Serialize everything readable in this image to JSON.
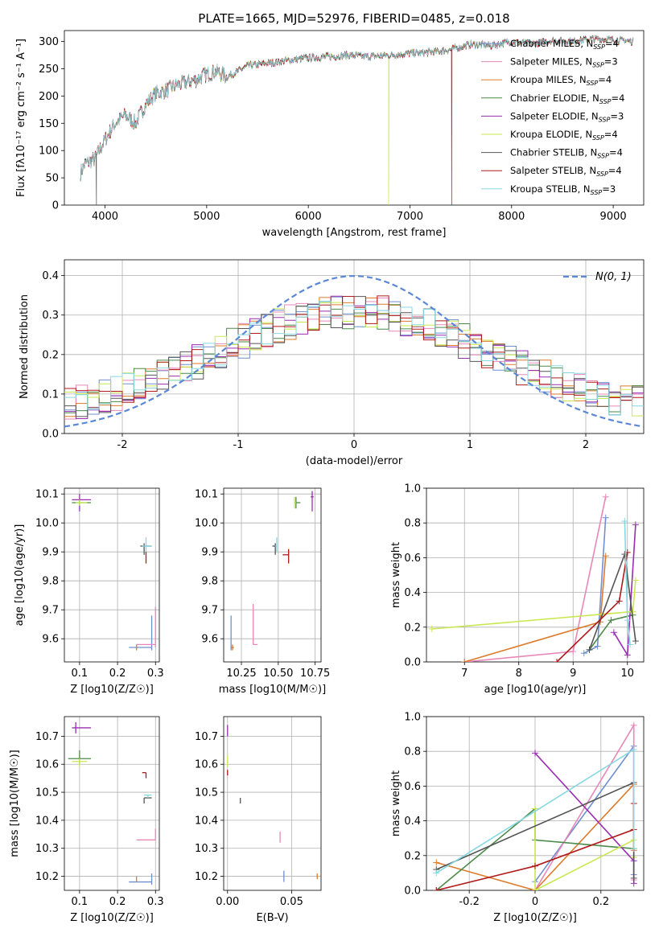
{
  "figure_title": "PLATE=1665, MJD=52976, FIBERID=0485, z=0.018",
  "colors": {
    "Chabrier MILES": "#6f8fcf",
    "Salpeter MILES": "#e887b8",
    "Kroupa MILES": "#dd7a2b",
    "Chabrier ELODIE": "#4a8a4a",
    "Salpeter ELODIE": "#9b2db3",
    "Kroupa ELODIE": "#c9e84f",
    "Chabrier STELIB": "#555555",
    "Salpeter STELIB": "#b01a1a",
    "Kroupa STELIB": "#86d8e0"
  },
  "chart_data": [
    {
      "id": "spectrum",
      "type": "line",
      "xlabel": "wavelength [Angstrom, rest frame]",
      "ylabel": "Flux [fλ10⁻¹⁷ erg cm⁻² s⁻¹ A⁻¹]",
      "xlim": [
        3600,
        9300
      ],
      "ylim": [
        0,
        320
      ],
      "xticks": [
        4000,
        5000,
        6000,
        7000,
        8000,
        9000
      ],
      "yticks": [
        0,
        50,
        100,
        150,
        200,
        250,
        300
      ],
      "grid": false,
      "legend_position": "top-right",
      "legend": [
        "Chabrier MILES, N_SSP=4",
        "Salpeter MILES, N_SSP=3",
        "Kroupa MILES, N_SSP=4",
        "Chabrier ELODIE, N_SSP=4",
        "Salpeter ELODIE, N_SSP=3",
        "Kroupa ELODIE, N_SSP=4",
        "Chabrier STELIB, N_SSP=4",
        "Salpeter STELIB, N_SSP=4",
        "Kroupa STELIB, N_SSP=3"
      ],
      "continuum": {
        "x": [
          3750,
          3800,
          3900,
          4000,
          4100,
          4200,
          4300,
          4400,
          4500,
          4600,
          4700,
          4800,
          4900,
          5000,
          5100,
          5200,
          5400,
          5600,
          5800,
          6000,
          6200,
          6400,
          6600,
          6800,
          7000,
          7200,
          7400,
          7600,
          7800,
          8000,
          8200,
          8400,
          8600,
          8800,
          9000,
          9200
        ],
        "y": [
          55,
          75,
          85,
          120,
          150,
          165,
          150,
          185,
          205,
          210,
          220,
          225,
          230,
          240,
          245,
          235,
          255,
          260,
          265,
          270,
          272,
          275,
          272,
          275,
          278,
          280,
          285,
          295,
          292,
          300,
          295,
          302,
          300,
          305,
          303,
          300
        ]
      },
      "dropouts": [
        {
          "series": "Chabrier STELIB",
          "x": 3915
        },
        {
          "series": "Kroupa ELODIE",
          "x": 6790
        },
        {
          "series": "Salpeter STELIB",
          "x": 7410
        }
      ]
    },
    {
      "id": "residuals",
      "type": "histogram",
      "xlabel": "(data-model)/error",
      "ylabel": "Normed distribution",
      "xlim": [
        -2.5,
        2.5
      ],
      "ylim": [
        0,
        0.44
      ],
      "xticks": [
        -2,
        -1,
        0,
        1,
        2
      ],
      "yticks": [
        0.0,
        0.1,
        0.2,
        0.3,
        0.4
      ],
      "grid": true,
      "bins": 50,
      "legend_position": "top-right",
      "gaussian_label": "N(0, 1)",
      "gaussian_color": "#5b87d6"
    },
    {
      "id": "Z-age",
      "type": "errorbar",
      "xlabel": "Z [log10(Z/Z☉)]",
      "ylabel": "age  [log10(age/yr)]",
      "xlim": [
        0.06,
        0.31
      ],
      "ylim": [
        9.52,
        10.12
      ],
      "xticks": [
        0.1,
        0.2,
        0.3
      ],
      "yticks": [
        9.6,
        9.7,
        9.8,
        9.9,
        10.0,
        10.1
      ],
      "grid": true,
      "points": [
        {
          "series": "Salpeter ELODIE",
          "x": 0.1,
          "y": 10.08,
          "xerr": [
            0.02,
            0.03
          ],
          "yerr": [
            0.04,
            0.02
          ]
        },
        {
          "series": "Chabrier ELODIE",
          "x": 0.1,
          "y": 10.07,
          "xerr": [
            0.02,
            0.03
          ],
          "yerr": [
            0.01,
            0.01
          ]
        },
        {
          "series": "Kroupa ELODIE",
          "x": 0.1,
          "y": 10.07,
          "xerr": [
            0.01,
            0.02
          ],
          "yerr": [
            0.01,
            0.01
          ]
        },
        {
          "series": "Chabrier STELIB",
          "x": 0.27,
          "y": 9.92,
          "xerr": [
            0.01,
            0.02
          ],
          "yerr": [
            0.03,
            0.01
          ]
        },
        {
          "series": "Kroupa STELIB",
          "x": 0.275,
          "y": 9.92,
          "xerr": [
            0.01,
            0.015
          ],
          "yerr": [
            0.02,
            0.03
          ]
        },
        {
          "series": "Salpeter STELIB",
          "x": 0.275,
          "y": 9.88,
          "xerr": [
            0.0,
            0.0
          ],
          "yerr": [
            0.02,
            0.02
          ]
        },
        {
          "series": "Chabrier MILES",
          "x": 0.29,
          "y": 9.57,
          "xerr": [
            0.06,
            0.0
          ],
          "yerr": [
            0.01,
            0.11
          ]
        },
        {
          "series": "Salpeter MILES",
          "x": 0.3,
          "y": 9.58,
          "xerr": [
            0.05,
            0.0
          ],
          "yerr": [
            0.01,
            0.13
          ]
        },
        {
          "series": "Kroupa MILES",
          "x": 0.25,
          "y": 9.57,
          "xerr": [
            0.0,
            0.0
          ],
          "yerr": [
            0.01,
            0.01
          ]
        }
      ]
    },
    {
      "id": "mass-age",
      "type": "errorbar",
      "xlabel": "mass [log10(M/M☉)]",
      "ylabel": "",
      "xlim": [
        10.13,
        10.79
      ],
      "ylim": [
        9.52,
        10.12
      ],
      "xticks": [
        10.25,
        10.5,
        10.75
      ],
      "yticks": [
        9.6,
        9.7,
        9.8,
        9.9,
        10.0,
        10.1
      ],
      "grid": true,
      "points": [
        {
          "series": "Salpeter ELODIE",
          "x": 10.73,
          "y": 10.09,
          "xerr": [
            0.01,
            0.01
          ],
          "yerr": [
            0.05,
            0.02
          ]
        },
        {
          "series": "Chabrier ELODIE",
          "x": 10.62,
          "y": 10.07,
          "xerr": [
            0.01,
            0.03
          ],
          "yerr": [
            0.02,
            0.02
          ]
        },
        {
          "series": "Kroupa ELODIE",
          "x": 10.61,
          "y": 10.07,
          "xerr": [
            0.0,
            0.01
          ],
          "yerr": [
            0.02,
            0.02
          ]
        },
        {
          "series": "Chabrier STELIB",
          "x": 10.48,
          "y": 9.92,
          "xerr": [
            0.02,
            0.0
          ],
          "yerr": [
            0.03,
            0.01
          ]
        },
        {
          "series": "Kroupa STELIB",
          "x": 10.49,
          "y": 9.92,
          "xerr": [
            0.01,
            0.0
          ],
          "yerr": [
            0.02,
            0.03
          ]
        },
        {
          "series": "Salpeter STELIB",
          "x": 10.57,
          "y": 9.89,
          "xerr": [
            0.04,
            0.0
          ],
          "yerr": [
            0.03,
            0.02
          ]
        },
        {
          "series": "Chabrier MILES",
          "x": 10.18,
          "y": 9.57,
          "xerr": [
            0.0,
            0.01
          ],
          "yerr": [
            0.01,
            0.11
          ]
        },
        {
          "series": "Salpeter MILES",
          "x": 10.33,
          "y": 9.58,
          "xerr": [
            0.0,
            0.03
          ],
          "yerr": [
            0.0,
            0.14
          ]
        },
        {
          "series": "Kroupa MILES",
          "x": 10.19,
          "y": 9.57,
          "xerr": [
            0.0,
            0.01
          ],
          "yerr": [
            0.01,
            0.01
          ]
        }
      ]
    },
    {
      "id": "age-weight",
      "type": "line",
      "xlabel": "age  [log10(age/yr)]",
      "ylabel": "mass weight",
      "xlim": [
        6.3,
        10.3
      ],
      "ylim": [
        0,
        1.0
      ],
      "xticks": [
        7,
        8,
        9,
        10
      ],
      "yticks": [
        0.0,
        0.2,
        0.4,
        0.6,
        0.8,
        1.0
      ],
      "grid": true,
      "series": [
        {
          "name": "Chabrier MILES",
          "x": [
            9.2,
            9.45,
            9.6
          ],
          "y": [
            0.05,
            0.09,
            0.83
          ]
        },
        {
          "name": "Salpeter MILES",
          "x": [
            7.0,
            9.0,
            9.6
          ],
          "y": [
            0.0,
            0.06,
            0.95
          ]
        },
        {
          "name": "Kroupa MILES",
          "x": [
            7.0,
            9.5,
            9.6
          ],
          "y": [
            0.0,
            0.23,
            0.61
          ]
        },
        {
          "name": "Chabrier ELODIE",
          "x": [
            9.3,
            9.7,
            10.1
          ],
          "y": [
            0.07,
            0.24,
            0.27
          ]
        },
        {
          "name": "Salpeter ELODIE",
          "x": [
            9.75,
            10.0,
            10.15
          ],
          "y": [
            0.17,
            0.04,
            0.79
          ]
        },
        {
          "name": "Kroupa ELODIE",
          "x": [
            6.4,
            10.1,
            10.15
          ],
          "y": [
            0.19,
            0.29,
            0.47
          ]
        },
        {
          "name": "Chabrier STELIB",
          "x": [
            9.3,
            9.95,
            10.15
          ],
          "y": [
            0.07,
            0.62,
            0.12
          ]
        },
        {
          "name": "Salpeter STELIB",
          "x": [
            8.7,
            9.85,
            10.0
          ],
          "y": [
            0.0,
            0.35,
            0.63
          ]
        },
        {
          "name": "Kroupa STELIB",
          "x": [
            9.95,
            10.0,
            10.05
          ],
          "y": [
            0.81,
            0.24,
            0.1
          ]
        }
      ]
    },
    {
      "id": "Z-mass",
      "type": "errorbar",
      "xlabel": "Z [log10(Z/Z☉)]",
      "ylabel": "mass [log10(M/M☉)]",
      "xlim": [
        0.06,
        0.31
      ],
      "ylim": [
        10.15,
        10.77
      ],
      "xticks": [
        0.1,
        0.2,
        0.3
      ],
      "yticks": [
        10.2,
        10.3,
        10.4,
        10.5,
        10.6,
        10.7
      ],
      "grid": true,
      "points": [
        {
          "series": "Salpeter ELODIE",
          "x": 0.09,
          "y": 10.73,
          "xerr": [
            0.01,
            0.04
          ],
          "yerr": [
            0.02,
            0.02
          ]
        },
        {
          "series": "Chabrier ELODIE",
          "x": 0.1,
          "y": 10.62,
          "xerr": [
            0.03,
            0.03
          ],
          "yerr": [
            0.02,
            0.03
          ]
        },
        {
          "series": "Kroupa ELODIE",
          "x": 0.1,
          "y": 10.61,
          "xerr": [
            0.02,
            0.02
          ],
          "yerr": [
            0.02,
            0.01
          ]
        },
        {
          "series": "Salpeter STELIB",
          "x": 0.275,
          "y": 10.57,
          "xerr": [
            0.01,
            0.0
          ],
          "yerr": [
            0.02,
            0.0
          ]
        },
        {
          "series": "Chabrier STELIB",
          "x": 0.27,
          "y": 10.48,
          "xerr": [
            0.0,
            0.02
          ],
          "yerr": [
            0.02,
            0.0
          ]
        },
        {
          "series": "Kroupa STELIB",
          "x": 0.28,
          "y": 10.49,
          "xerr": [
            0.01,
            0.01
          ],
          "yerr": [
            0.01,
            0.0
          ]
        },
        {
          "series": "Salpeter MILES",
          "x": 0.3,
          "y": 10.33,
          "xerr": [
            0.05,
            0.0
          ],
          "yerr": [
            0.0,
            0.04
          ]
        },
        {
          "series": "Chabrier MILES",
          "x": 0.29,
          "y": 10.18,
          "xerr": [
            0.06,
            0.0
          ],
          "yerr": [
            0.01,
            0.03
          ]
        },
        {
          "series": "Kroupa MILES",
          "x": 0.25,
          "y": 10.19,
          "xerr": [
            0.0,
            0.0
          ],
          "yerr": [
            0.01,
            0.01
          ]
        }
      ]
    },
    {
      "id": "ebv-mass",
      "type": "errorbar",
      "xlabel": "E(B-V)",
      "ylabel": "",
      "xlim": [
        -0.003,
        0.073
      ],
      "ylim": [
        10.15,
        10.77
      ],
      "xticks": [
        0.0,
        0.05
      ],
      "xticklabels": [
        "0.00",
        "0.05"
      ],
      "yticks": [
        10.2,
        10.3,
        10.4,
        10.5,
        10.6,
        10.7
      ],
      "grid": true,
      "points": [
        {
          "series": "Salpeter ELODIE",
          "x": 0.0,
          "y": 10.72,
          "xerr": [
            0.0,
            0.0
          ],
          "yerr": [
            0.02,
            0.02
          ]
        },
        {
          "series": "Kroupa ELODIE",
          "x": 0.0,
          "y": 10.61,
          "xerr": [
            0.0,
            0.0
          ],
          "yerr": [
            0.02,
            0.02
          ]
        },
        {
          "series": "Salpeter STELIB",
          "x": 0.0,
          "y": 10.57,
          "xerr": [
            0.0,
            0.0
          ],
          "yerr": [
            0.01,
            0.01
          ]
        },
        {
          "series": "Chabrier STELIB",
          "x": 0.01,
          "y": 10.47,
          "xerr": [
            0.0,
            0.0
          ],
          "yerr": [
            0.01,
            0.01
          ]
        },
        {
          "series": "Salpeter MILES",
          "x": 0.041,
          "y": 10.34,
          "xerr": [
            0.0,
            0.0
          ],
          "yerr": [
            0.02,
            0.02
          ]
        },
        {
          "series": "Chabrier MILES",
          "x": 0.044,
          "y": 10.2,
          "xerr": [
            0.0,
            0.0
          ],
          "yerr": [
            0.02,
            0.02
          ]
        },
        {
          "series": "Kroupa MILES",
          "x": 0.07,
          "y": 10.2,
          "xerr": [
            0.0,
            0.0
          ],
          "yerr": [
            0.01,
            0.01
          ]
        }
      ]
    },
    {
      "id": "Z-weight",
      "type": "line",
      "xlabel": "Z [log10(Z/Z☉)]",
      "ylabel": "mass weight",
      "xlim": [
        -0.33,
        0.33
      ],
      "ylim": [
        0,
        1.0
      ],
      "xticks": [
        -0.2,
        0.0,
        0.2
      ],
      "yticks": [
        0.0,
        0.2,
        0.4,
        0.6,
        0.8,
        1.0
      ],
      "grid": true,
      "series": [
        {
          "name": "Chabrier MILES",
          "x": [
            0.0,
            0.3,
            0.3
          ],
          "y": [
            0.05,
            0.83,
            0.09
          ]
        },
        {
          "name": "Salpeter MILES",
          "x": [
            0.0,
            0.3,
            0.3
          ],
          "y": [
            0.0,
            0.95,
            0.06
          ]
        },
        {
          "name": "Kroupa MILES",
          "x": [
            -0.3,
            0.0,
            0.3,
            0.3
          ],
          "y": [
            0.16,
            0.0,
            0.61,
            0.23
          ]
        },
        {
          "name": "Chabrier ELODIE",
          "x": [
            -0.3,
            0.0,
            0.0,
            0.3
          ],
          "y": [
            0.0,
            0.47,
            0.29,
            0.24
          ]
        },
        {
          "name": "Salpeter ELODIE",
          "x": [
            0.0,
            0.3,
            0.3
          ],
          "y": [
            0.79,
            0.17,
            0.04
          ]
        },
        {
          "name": "Kroupa ELODIE",
          "x": [
            0.0,
            0.0,
            0.3,
            0.3
          ],
          "y": [
            0.47,
            0.0,
            0.29,
            0.19
          ]
        },
        {
          "name": "Chabrier STELIB",
          "x": [
            -0.3,
            0.3,
            0.3
          ],
          "y": [
            0.12,
            0.62,
            0.07
          ]
        },
        {
          "name": "Salpeter STELIB",
          "x": [
            -0.3,
            0.0,
            0.3,
            0.3
          ],
          "y": [
            0.0,
            0.14,
            0.35,
            0.5
          ]
        },
        {
          "name": "Kroupa STELIB",
          "x": [
            -0.3,
            0.3,
            0.3
          ],
          "y": [
            0.1,
            0.81,
            0.24
          ]
        }
      ]
    }
  ]
}
